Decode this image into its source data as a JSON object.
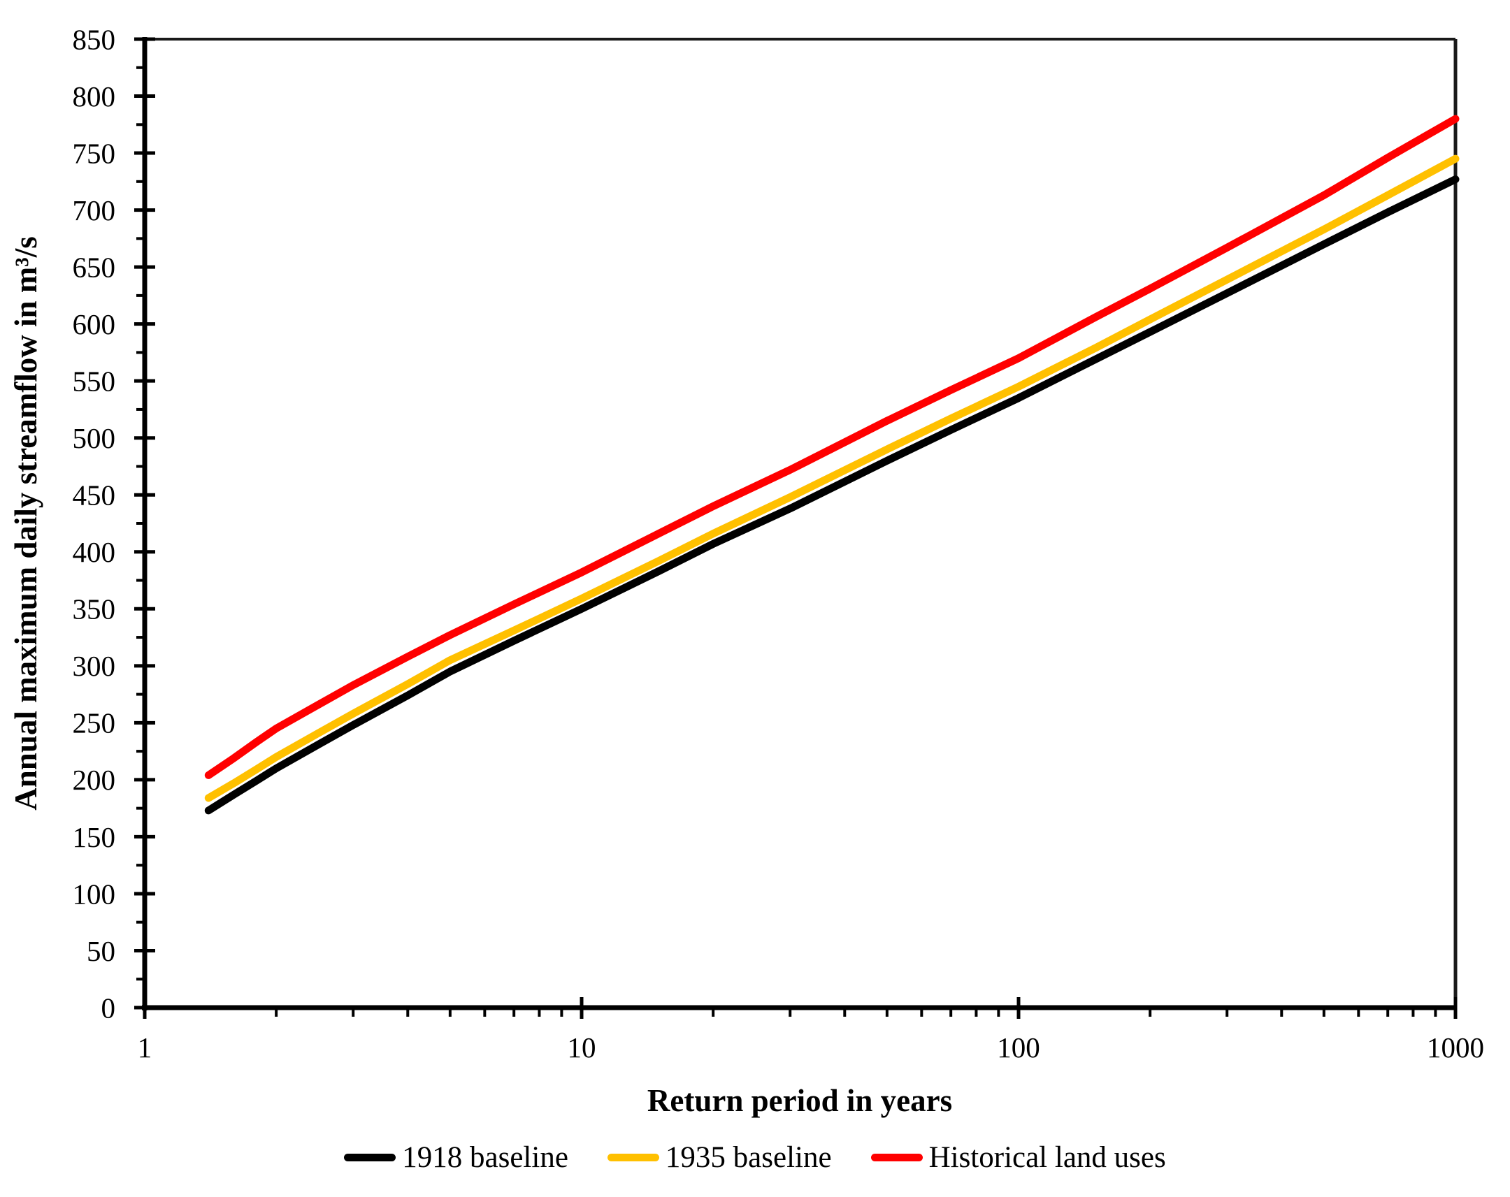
{
  "chart_data": {
    "type": "line",
    "title": "",
    "xlabel": "Return period in years",
    "ylabel": "Annual maximum daily streamflow in m³/s",
    "x_scale": "log",
    "xlim": [
      1,
      1000
    ],
    "ylim": [
      0,
      850
    ],
    "y_major_tick_step": 50,
    "y_minor_tick_step": 25,
    "x_major_ticks": [
      1,
      10,
      100,
      1000
    ],
    "grid": false,
    "legend_position": "bottom",
    "x": [
      1.4,
      1.6,
      1.8,
      2,
      2.5,
      3,
      4,
      5,
      7,
      10,
      15,
      20,
      30,
      50,
      70,
      100,
      150,
      200,
      300,
      500,
      700,
      1000
    ],
    "series": [
      {
        "name": "1918 baseline",
        "color": "#000000",
        "values": [
          173,
          187,
          199,
          210,
          231,
          248,
          274,
          295,
          322,
          350,
          383,
          407,
          438,
          480,
          507,
          535,
          569,
          593,
          627,
          670,
          698,
          727
        ]
      },
      {
        "name": "1935 baseline",
        "color": "#FFC000",
        "values": [
          184,
          197,
          209,
          220,
          241,
          258,
          284,
          305,
          331,
          359,
          392,
          416,
          448,
          490,
          517,
          545,
          579,
          604,
          639,
          683,
          713,
          745
        ]
      },
      {
        "name": "Historical land uses",
        "color": "#FF0000",
        "values": [
          204,
          219,
          233,
          245,
          266,
          283,
          308,
          327,
          354,
          382,
          416,
          440,
          472,
          515,
          542,
          570,
          606,
          631,
          667,
          713,
          746,
          780
        ]
      }
    ]
  }
}
